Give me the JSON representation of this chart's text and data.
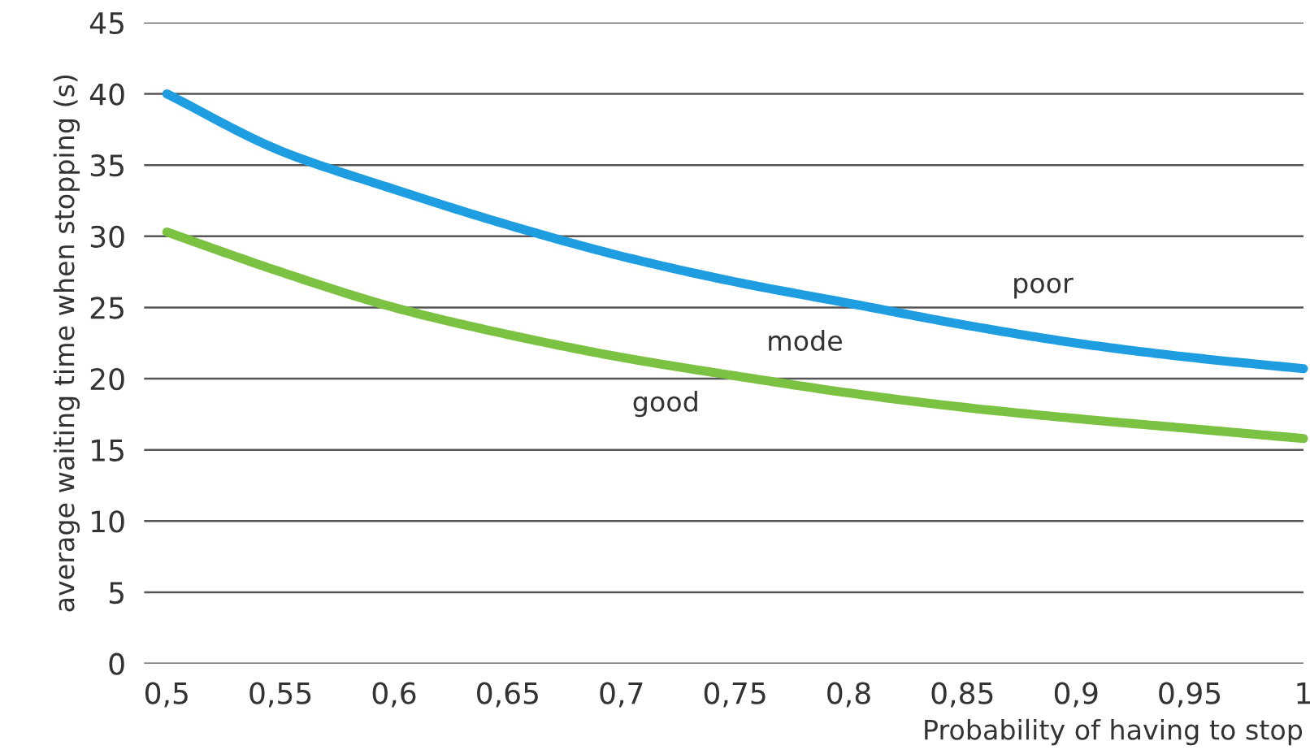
{
  "chart_data": {
    "type": "line",
    "xlabel": "Probability of having to stop",
    "ylabel": "average waiting time when stopping (s)",
    "x": [
      0.5,
      0.55,
      0.6,
      0.65,
      0.7,
      0.75,
      0.8,
      0.85,
      0.9,
      0.95,
      1.0
    ],
    "series": [
      {
        "color": "#1e9ee0",
        "values": [
          40,
          36,
          33.3,
          30.8,
          28.6,
          26.8,
          25.3,
          23.8,
          22.5,
          21.5,
          20.7
        ]
      },
      {
        "color": "#7cc242",
        "values": [
          30.3,
          27.5,
          25,
          23.1,
          21.5,
          20.2,
          19,
          18,
          17.2,
          16.5,
          15.8
        ]
      }
    ],
    "annotations": [
      "poor",
      "mode",
      "good"
    ],
    "xlim": [
      0.49,
      1.0
    ],
    "ylim": [
      0,
      45
    ],
    "xticks": [
      {
        "value": 0.5,
        "label": "0,5"
      },
      {
        "value": 0.55,
        "label": "0,55"
      },
      {
        "value": 0.6,
        "label": "0,6"
      },
      {
        "value": 0.65,
        "label": "0,65"
      },
      {
        "value": 0.7,
        "label": "0,7"
      },
      {
        "value": 0.75,
        "label": "0,75"
      },
      {
        "value": 0.8,
        "label": "0,8"
      },
      {
        "value": 0.85,
        "label": "0,85"
      },
      {
        "value": 0.9,
        "label": "0,9"
      },
      {
        "value": 0.95,
        "label": "0,95"
      },
      {
        "value": 1.0,
        "label": "1"
      }
    ],
    "yticks": [
      0,
      5,
      10,
      15,
      20,
      25,
      30,
      35,
      40,
      45
    ],
    "grid": "y",
    "legend": false,
    "marker": "none",
    "line_style": "solid"
  }
}
